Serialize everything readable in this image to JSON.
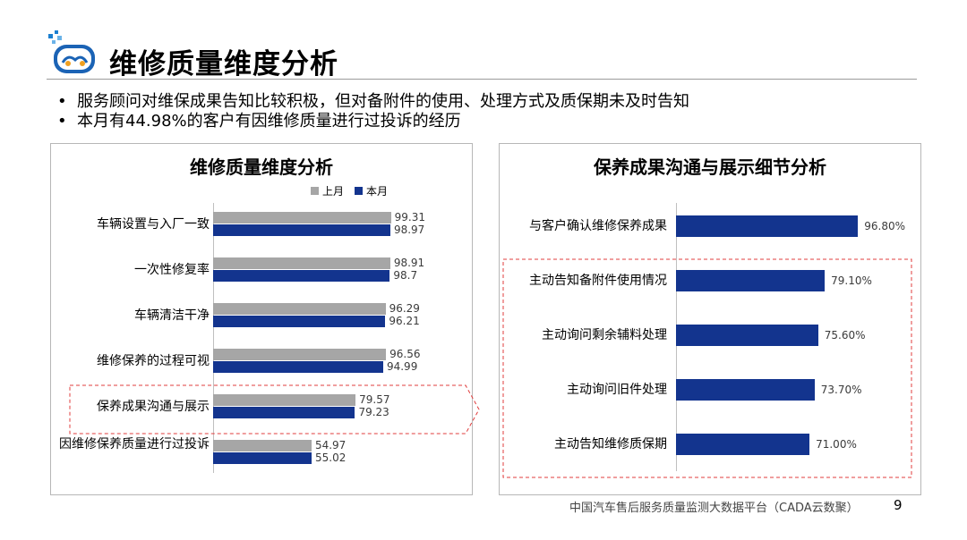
{
  "header": {
    "title": "维修质量维度分析"
  },
  "bullets": [
    "服务顾问对维保成果告知比较积极，但对备附件的使用、处理方式及质保期未及时告知",
    "本月有44.98%的客户有因维修质量进行过投诉的经历"
  ],
  "colors": {
    "last_month": "#a6a6a6",
    "this_month": "#13348e",
    "highlight": "#e03c3c"
  },
  "chart_data": [
    {
      "type": "bar",
      "orientation": "horizontal",
      "title": "维修质量维度分析",
      "categories": [
        "车辆设置与入厂一致",
        "一次性修复率",
        "车辆清洁干净",
        "维修保养的过程可视",
        "保养成果沟通与展示",
        "因维修保养质量进行过投诉"
      ],
      "series": [
        {
          "name": "上月",
          "values": [
            99.31,
            98.91,
            96.29,
            96.56,
            79.57,
            54.97
          ],
          "labels": [
            "99.31",
            "98.91",
            "96.29",
            "96.56",
            "79.57",
            "54.97"
          ]
        },
        {
          "name": "本月",
          "values": [
            98.97,
            98.7,
            96.21,
            94.99,
            79.23,
            55.02
          ],
          "labels": [
            "98.97",
            "98.7",
            "96.21",
            "94.99",
            "79.23",
            "55.02"
          ]
        }
      ],
      "xlim": [
        0,
        100
      ],
      "legend_position": "top-right",
      "highlighted_category": "保养成果沟通与展示",
      "grid": false
    },
    {
      "type": "bar",
      "orientation": "horizontal",
      "title": "保养成果沟通与展示细节分析",
      "categories": [
        "与客户确认维修保养成果",
        "主动告知备附件使用情况",
        "主动询问剩余辅料处理",
        "主动询问旧件处理",
        "主动告知维修质保期"
      ],
      "series": [
        {
          "values": [
            96.8,
            79.1,
            75.6,
            73.7,
            71.0
          ],
          "labels": [
            "96.80%",
            "79.10%",
            "75.60%",
            "73.70%",
            "71.00%"
          ]
        }
      ],
      "xlim": [
        0,
        100
      ],
      "highlighted_categories": [
        "主动告知备附件使用情况",
        "主动询问剩余辅料处理",
        "主动询问旧件处理",
        "主动告知维修质保期"
      ],
      "grid": false
    }
  ],
  "footer": {
    "source": "中国汽车售后服务质量监测大数据平台（CADA云数聚）",
    "page_number": "9"
  }
}
